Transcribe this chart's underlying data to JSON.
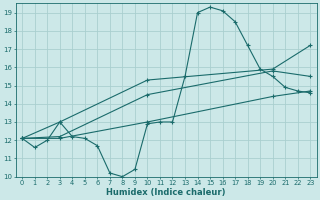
{
  "xlabel": "Humidex (Indice chaleur)",
  "bg_color": "#cce8e8",
  "grid_color": "#aacfcf",
  "line_color": "#1a6b6b",
  "xlim": [
    -0.5,
    23.5
  ],
  "ylim": [
    10,
    19.5
  ],
  "yticks": [
    10,
    11,
    12,
    13,
    14,
    15,
    16,
    17,
    18,
    19
  ],
  "xticks": [
    0,
    1,
    2,
    3,
    4,
    5,
    6,
    7,
    8,
    9,
    10,
    11,
    12,
    13,
    14,
    15,
    16,
    17,
    18,
    19,
    20,
    21,
    22,
    23
  ],
  "series1_x": [
    0,
    1,
    2,
    3,
    4,
    5,
    6,
    7,
    8,
    9,
    10,
    11,
    12,
    13,
    14,
    15,
    16,
    17,
    18,
    19,
    20,
    21,
    22,
    23
  ],
  "series1_y": [
    12.1,
    11.6,
    12.0,
    13.0,
    12.2,
    12.1,
    11.7,
    10.2,
    10.0,
    10.4,
    12.9,
    13.0,
    13.0,
    15.5,
    19.0,
    19.3,
    19.1,
    18.5,
    17.2,
    15.9,
    15.5,
    14.9,
    14.7,
    14.6
  ],
  "series2_x": [
    0,
    3,
    10,
    20,
    23
  ],
  "series2_y": [
    12.1,
    13.0,
    15.3,
    15.9,
    17.2
  ],
  "series3_x": [
    0,
    3,
    10,
    20,
    23
  ],
  "series3_y": [
    12.1,
    12.2,
    14.5,
    15.8,
    15.5
  ],
  "series4_x": [
    0,
    3,
    10,
    20,
    23
  ],
  "series4_y": [
    12.1,
    12.1,
    13.0,
    14.4,
    14.7
  ]
}
